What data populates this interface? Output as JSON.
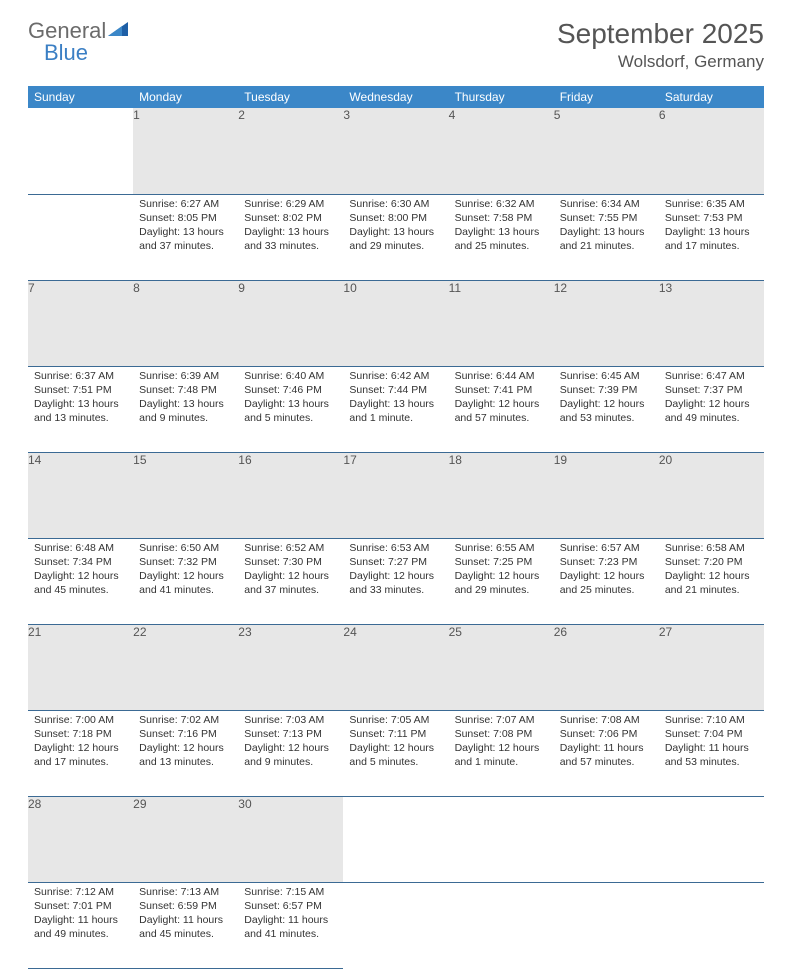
{
  "logo": {
    "part1": "General",
    "part2": "Blue"
  },
  "title": "September 2025",
  "location": "Wolsdorf, Germany",
  "colors": {
    "header_bg": "#3b87c8",
    "header_text": "#ffffff",
    "daynum_bg": "#e7e7e7",
    "row_border": "#3b6a94",
    "logo_gray": "#6b6b6b",
    "logo_blue": "#3b7fc4",
    "text": "#333333",
    "title_color": "#555555"
  },
  "day_headers": [
    "Sunday",
    "Monday",
    "Tuesday",
    "Wednesday",
    "Thursday",
    "Friday",
    "Saturday"
  ],
  "weeks": [
    [
      null,
      {
        "n": "1",
        "sr": "6:27 AM",
        "ss": "8:05 PM",
        "dl": "13 hours and 37 minutes."
      },
      {
        "n": "2",
        "sr": "6:29 AM",
        "ss": "8:02 PM",
        "dl": "13 hours and 33 minutes."
      },
      {
        "n": "3",
        "sr": "6:30 AM",
        "ss": "8:00 PM",
        "dl": "13 hours and 29 minutes."
      },
      {
        "n": "4",
        "sr": "6:32 AM",
        "ss": "7:58 PM",
        "dl": "13 hours and 25 minutes."
      },
      {
        "n": "5",
        "sr": "6:34 AM",
        "ss": "7:55 PM",
        "dl": "13 hours and 21 minutes."
      },
      {
        "n": "6",
        "sr": "6:35 AM",
        "ss": "7:53 PM",
        "dl": "13 hours and 17 minutes."
      }
    ],
    [
      {
        "n": "7",
        "sr": "6:37 AM",
        "ss": "7:51 PM",
        "dl": "13 hours and 13 minutes."
      },
      {
        "n": "8",
        "sr": "6:39 AM",
        "ss": "7:48 PM",
        "dl": "13 hours and 9 minutes."
      },
      {
        "n": "9",
        "sr": "6:40 AM",
        "ss": "7:46 PM",
        "dl": "13 hours and 5 minutes."
      },
      {
        "n": "10",
        "sr": "6:42 AM",
        "ss": "7:44 PM",
        "dl": "13 hours and 1 minute."
      },
      {
        "n": "11",
        "sr": "6:44 AM",
        "ss": "7:41 PM",
        "dl": "12 hours and 57 minutes."
      },
      {
        "n": "12",
        "sr": "6:45 AM",
        "ss": "7:39 PM",
        "dl": "12 hours and 53 minutes."
      },
      {
        "n": "13",
        "sr": "6:47 AM",
        "ss": "7:37 PM",
        "dl": "12 hours and 49 minutes."
      }
    ],
    [
      {
        "n": "14",
        "sr": "6:48 AM",
        "ss": "7:34 PM",
        "dl": "12 hours and 45 minutes."
      },
      {
        "n": "15",
        "sr": "6:50 AM",
        "ss": "7:32 PM",
        "dl": "12 hours and 41 minutes."
      },
      {
        "n": "16",
        "sr": "6:52 AM",
        "ss": "7:30 PM",
        "dl": "12 hours and 37 minutes."
      },
      {
        "n": "17",
        "sr": "6:53 AM",
        "ss": "7:27 PM",
        "dl": "12 hours and 33 minutes."
      },
      {
        "n": "18",
        "sr": "6:55 AM",
        "ss": "7:25 PM",
        "dl": "12 hours and 29 minutes."
      },
      {
        "n": "19",
        "sr": "6:57 AM",
        "ss": "7:23 PM",
        "dl": "12 hours and 25 minutes."
      },
      {
        "n": "20",
        "sr": "6:58 AM",
        "ss": "7:20 PM",
        "dl": "12 hours and 21 minutes."
      }
    ],
    [
      {
        "n": "21",
        "sr": "7:00 AM",
        "ss": "7:18 PM",
        "dl": "12 hours and 17 minutes."
      },
      {
        "n": "22",
        "sr": "7:02 AM",
        "ss": "7:16 PM",
        "dl": "12 hours and 13 minutes."
      },
      {
        "n": "23",
        "sr": "7:03 AM",
        "ss": "7:13 PM",
        "dl": "12 hours and 9 minutes."
      },
      {
        "n": "24",
        "sr": "7:05 AM",
        "ss": "7:11 PM",
        "dl": "12 hours and 5 minutes."
      },
      {
        "n": "25",
        "sr": "7:07 AM",
        "ss": "7:08 PM",
        "dl": "12 hours and 1 minute."
      },
      {
        "n": "26",
        "sr": "7:08 AM",
        "ss": "7:06 PM",
        "dl": "11 hours and 57 minutes."
      },
      {
        "n": "27",
        "sr": "7:10 AM",
        "ss": "7:04 PM",
        "dl": "11 hours and 53 minutes."
      }
    ],
    [
      {
        "n": "28",
        "sr": "7:12 AM",
        "ss": "7:01 PM",
        "dl": "11 hours and 49 minutes."
      },
      {
        "n": "29",
        "sr": "7:13 AM",
        "ss": "6:59 PM",
        "dl": "11 hours and 45 minutes."
      },
      {
        "n": "30",
        "sr": "7:15 AM",
        "ss": "6:57 PM",
        "dl": "11 hours and 41 minutes."
      },
      null,
      null,
      null,
      null
    ]
  ],
  "labels": {
    "sunrise": "Sunrise:",
    "sunset": "Sunset:",
    "daylight": "Daylight:"
  }
}
